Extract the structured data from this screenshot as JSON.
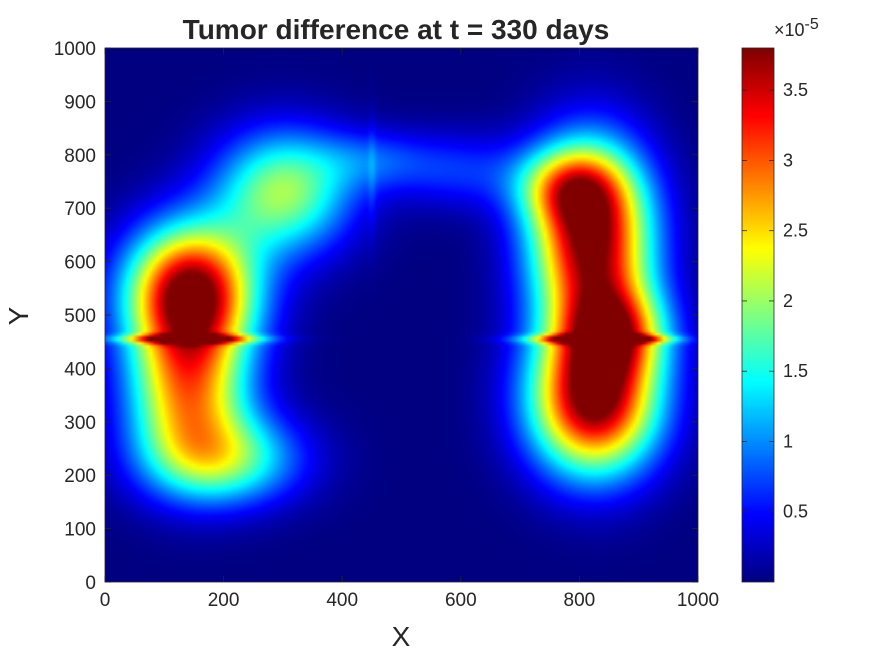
{
  "chart_data": {
    "type": "heatmap",
    "title": "Tumor difference at t = 330 days",
    "xlabel": "X",
    "ylabel": "Y",
    "xlim": [
      0,
      1000
    ],
    "ylim": [
      0,
      1000
    ],
    "x_ticks": [
      "0",
      "200",
      "400",
      "600",
      "800",
      "1000"
    ],
    "y_ticks": [
      "0",
      "100",
      "200",
      "300",
      "400",
      "500",
      "600",
      "700",
      "800",
      "900",
      "1000"
    ],
    "colormap": "jet",
    "colorbar": {
      "range": [
        0,
        3.8e-05
      ],
      "ticks": [
        "0.5",
        "1",
        "1.5",
        "2",
        "2.5",
        "3",
        "3.5"
      ],
      "exponent_base": "×10",
      "exponent_power": "-5"
    },
    "grid": false,
    "field": {
      "blobs": [
        {
          "cx": 145,
          "cy": 545,
          "sx": 75,
          "sy": 85,
          "amp": 3.8
        },
        {
          "cx": 300,
          "cy": 730,
          "sx": 80,
          "sy": 80,
          "amp": 2.0
        },
        {
          "cx": 140,
          "cy": 360,
          "sx": 70,
          "sy": 100,
          "amp": 2.6
        },
        {
          "cx": 200,
          "cy": 230,
          "sx": 90,
          "sy": 60,
          "amp": 1.7
        },
        {
          "cx": 820,
          "cy": 640,
          "sx": 70,
          "sy": 120,
          "amp": 3.9
        },
        {
          "cx": 780,
          "cy": 740,
          "sx": 60,
          "sy": 50,
          "amp": 1.5
        },
        {
          "cx": 825,
          "cy": 340,
          "sx": 75,
          "sy": 95,
          "amp": 3.9
        },
        {
          "cx": 860,
          "cy": 470,
          "sx": 60,
          "sy": 60,
          "amp": 2.0
        },
        {
          "cx": 450,
          "cy": 790,
          "sx": 70,
          "sy": 40,
          "amp": 0.6
        },
        {
          "cx": 600,
          "cy": 770,
          "sx": 80,
          "sy": 50,
          "amp": 0.6
        }
      ],
      "band_y": 455,
      "band_width": 8,
      "band_amp": 0.6,
      "vline_x": 450,
      "vline_amp": 0.2
    }
  }
}
